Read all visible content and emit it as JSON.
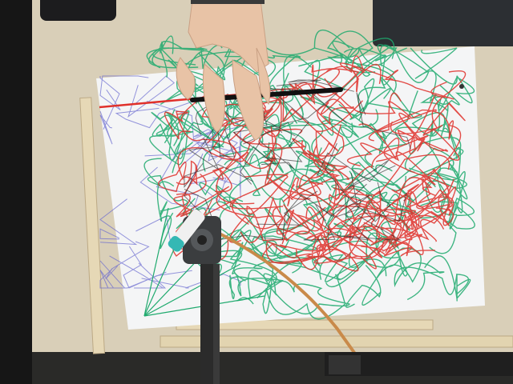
{
  "scene": {
    "colors": {
      "background_dark": "#1a1a1a",
      "desk_wood": "#d9cfb8",
      "paper": "#f4f5f6",
      "ink_red": "#e0302a",
      "ink_green": "#1faa6e",
      "ink_blue": "#6a6ad0",
      "ink_black": "#222222",
      "skin": "#e8c3a6",
      "marker_cap": "#35b8b4",
      "plotter_arm": "#2b2b2b",
      "servo_wire": "#c98a4a"
    },
    "objects": [
      "desk",
      "paper-sheet",
      "scribble-drawing",
      "hand",
      "pen-held",
      "plotter-arm",
      "marker",
      "wooden-rails",
      "phone",
      "laptop"
    ]
  }
}
